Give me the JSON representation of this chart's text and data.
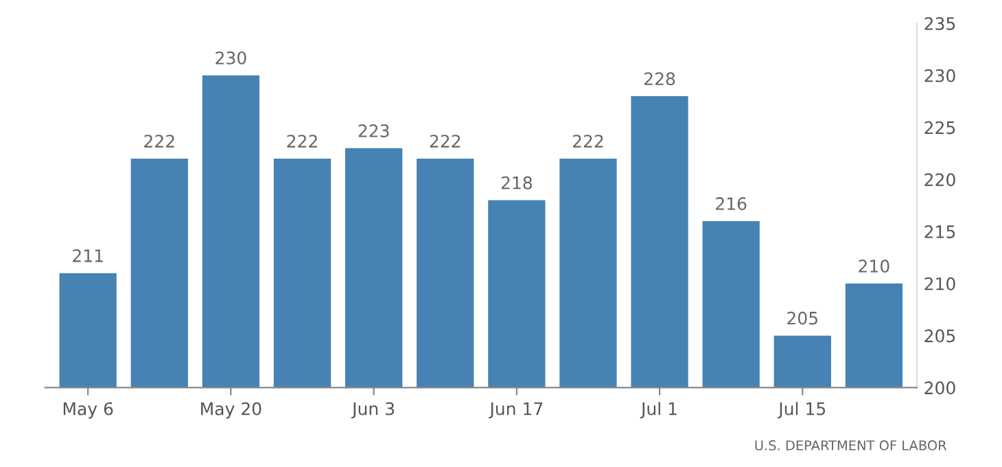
{
  "chart_data": {
    "type": "bar",
    "categories": [
      "May 6",
      null,
      "May 20",
      null,
      "Jun 3",
      null,
      "Jun 17",
      null,
      "Jul 1",
      null,
      "Jul 15",
      null
    ],
    "values": [
      211,
      222,
      230,
      222,
      223,
      222,
      218,
      222,
      228,
      216,
      205,
      210
    ],
    "color": "#4682b4",
    "ylim": [
      200,
      235
    ],
    "yticks": [
      200,
      205,
      210,
      215,
      220,
      225,
      230,
      235
    ],
    "data_labels": true,
    "annotations": [
      "U.S. DEPARTMENT OF LABOR"
    ]
  }
}
